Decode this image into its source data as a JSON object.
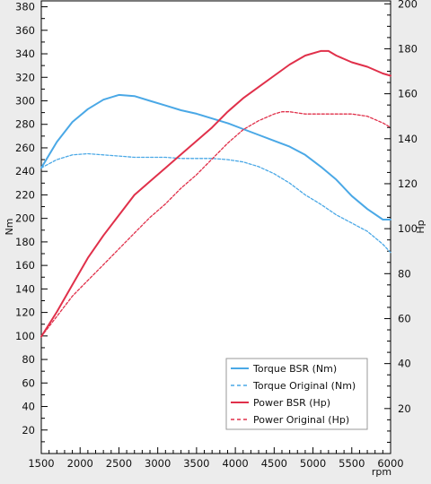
{
  "chart_data": {
    "type": "line",
    "xlabel": "rpm",
    "ylabel_left": "Nm",
    "ylabel_right": "Hp",
    "xlim": [
      1500,
      6000
    ],
    "ylim_left": [
      0,
      385
    ],
    "ylim_right": [
      0,
      201.3
    ],
    "x_ticks": [
      1500,
      2000,
      2500,
      3000,
      3500,
      4000,
      4500,
      5000,
      5500,
      6000
    ],
    "y_left_ticks": [
      20,
      40,
      60,
      80,
      100,
      120,
      140,
      160,
      180,
      200,
      220,
      240,
      260,
      280,
      300,
      320,
      340,
      360,
      380
    ],
    "y_right_ticks": [
      20,
      40,
      60,
      80,
      100,
      120,
      140,
      160,
      180,
      200
    ],
    "grid": false,
    "legend_position": "bottom-right",
    "colors": {
      "torque": "#4aa8e6",
      "power": "#e0304a",
      "background": "#ffffff"
    },
    "series": [
      {
        "name": "Torque BSR (Nm)",
        "axis": "left",
        "style": "solid",
        "x": [
          1500,
          1700,
          1900,
          2100,
          2300,
          2500,
          2700,
          2900,
          3100,
          3300,
          3500,
          3700,
          3900,
          4100,
          4300,
          4500,
          4700,
          4900,
          5100,
          5300,
          5500,
          5700,
          5900,
          6000
        ],
        "y": [
          243,
          265,
          282,
          293,
          301,
          305,
          304,
          300,
          296,
          292,
          289,
          285,
          281,
          276,
          271,
          266,
          261,
          254,
          244,
          233,
          219,
          208,
          199,
          199
        ]
      },
      {
        "name": "Torque Original (Nm)",
        "axis": "left",
        "style": "dashed",
        "x": [
          1500,
          1700,
          1900,
          2100,
          2300,
          2500,
          2700,
          2900,
          3100,
          3300,
          3500,
          3700,
          3900,
          4100,
          4300,
          4500,
          4700,
          4900,
          5100,
          5300,
          5500,
          5700,
          5900,
          6000
        ],
        "y": [
          243,
          250,
          254,
          255,
          254,
          253,
          252,
          252,
          252,
          251,
          251,
          251,
          250,
          248,
          244,
          238,
          230,
          220,
          212,
          203,
          196,
          189,
          178,
          171
        ]
      },
      {
        "name": "Power BSR (Hp)",
        "axis": "right",
        "style": "solid",
        "x": [
          1500,
          1700,
          1900,
          2100,
          2300,
          2500,
          2700,
          2900,
          3100,
          3300,
          3500,
          3700,
          3900,
          4100,
          4300,
          4500,
          4700,
          4900,
          5100,
          5200,
          5300,
          5500,
          5700,
          5900,
          6000
        ],
        "y": [
          52,
          63,
          75,
          87,
          97,
          106,
          115,
          121,
          127,
          133,
          139,
          145,
          152,
          158,
          163,
          168,
          173,
          177,
          179,
          179,
          177,
          174,
          172,
          169,
          168
        ]
      },
      {
        "name": "Power Original (Hp)",
        "axis": "right",
        "style": "dashed",
        "x": [
          1500,
          1700,
          1900,
          2100,
          2300,
          2500,
          2700,
          2900,
          3100,
          3300,
          3500,
          3700,
          3900,
          4100,
          4300,
          4500,
          4600,
          4700,
          4900,
          5100,
          5300,
          5500,
          5700,
          5900,
          6000
        ],
        "y": [
          52,
          61,
          70,
          77,
          84,
          91,
          98,
          105,
          111,
          118,
          124,
          131,
          138,
          144,
          148,
          151,
          152,
          152,
          151,
          151,
          151,
          151,
          150,
          147,
          145
        ]
      }
    ]
  }
}
